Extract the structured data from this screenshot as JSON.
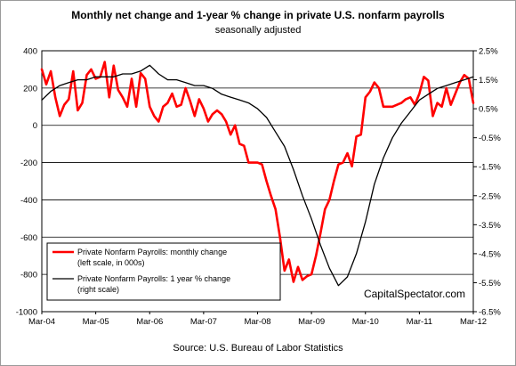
{
  "chart_data": {
    "type": "line",
    "title": "Monthly net change and 1-year %  change in private U.S. nonfarm payrolls",
    "subtitle": "seasonally adjusted",
    "source": "Source: U.S. Bureau of Labor Statistics",
    "watermark": "CapitalSpectator.com",
    "x_ticks": [
      "Mar-04",
      "Mar-05",
      "Mar-06",
      "Mar-07",
      "Mar-08",
      "Mar-09",
      "Mar-10",
      "Mar-11",
      "Mar-12"
    ],
    "y_left": {
      "ylim": [
        -1000,
        400
      ],
      "ticks": [
        "400",
        "200",
        "0",
        "-200",
        "-400",
        "-600",
        "-800",
        "-1000"
      ]
    },
    "y_right": {
      "ylim": [
        -6.5,
        2.5
      ],
      "ticks": [
        "2.5%",
        "1.5%",
        "0.5%",
        "-0.5%",
        "-1.5%",
        "-2.5%",
        "-3.5%",
        "-4.5%",
        "-5.5%",
        "-6.5%"
      ]
    },
    "grid": true,
    "legend_position": "bottom-left",
    "series": [
      {
        "name": "Private Nonfarm Payrolls: monthly change",
        "name_line2": "(left scale, in 000s)",
        "axis": "left",
        "color": "#ff0000",
        "x": [
          2004.167,
          2004.25,
          2004.333,
          2004.417,
          2004.5,
          2004.583,
          2004.667,
          2004.75,
          2004.833,
          2004.917,
          2005,
          2005.083,
          2005.167,
          2005.25,
          2005.333,
          2005.417,
          2005.5,
          2005.583,
          2005.667,
          2005.75,
          2005.833,
          2005.917,
          2006,
          2006.083,
          2006.167,
          2006.25,
          2006.333,
          2006.417,
          2006.5,
          2006.583,
          2006.667,
          2006.75,
          2006.833,
          2006.917,
          2007,
          2007.083,
          2007.167,
          2007.25,
          2007.333,
          2007.417,
          2007.5,
          2007.583,
          2007.667,
          2007.75,
          2007.833,
          2007.917,
          2008,
          2008.083,
          2008.167,
          2008.25,
          2008.333,
          2008.417,
          2008.5,
          2008.583,
          2008.667,
          2008.75,
          2008.833,
          2008.917,
          2009,
          2009.083,
          2009.167,
          2009.25,
          2009.333,
          2009.417,
          2009.5,
          2009.583,
          2009.667,
          2009.75,
          2009.833,
          2009.917,
          2010,
          2010.083,
          2010.167,
          2010.25,
          2010.333,
          2010.417,
          2010.5,
          2010.583,
          2010.667,
          2010.75,
          2010.833,
          2010.917,
          2011,
          2011.083,
          2011.167,
          2011.25,
          2011.333,
          2011.417,
          2011.5,
          2011.583,
          2011.667,
          2011.75,
          2011.833,
          2011.917,
          2012,
          2012.083,
          2012.167
        ],
        "values": [
          300,
          220,
          290,
          150,
          50,
          110,
          140,
          290,
          80,
          120,
          270,
          300,
          250,
          260,
          340,
          150,
          320,
          190,
          150,
          100,
          250,
          100,
          280,
          250,
          100,
          50,
          20,
          100,
          120,
          170,
          100,
          110,
          200,
          130,
          50,
          140,
          90,
          20,
          60,
          80,
          60,
          20,
          -50,
          0,
          -100,
          -110,
          -200,
          -200,
          -200,
          -210,
          -300,
          -380,
          -450,
          -600,
          -780,
          -720,
          -840,
          -760,
          -830,
          -810,
          -800,
          -700,
          -580,
          -450,
          -400,
          -300,
          -210,
          -200,
          -150,
          -220,
          -60,
          -50,
          150,
          180,
          230,
          200,
          100,
          100,
          100,
          110,
          120,
          140,
          150,
          110,
          170,
          260,
          240,
          50,
          120,
          100,
          200,
          110,
          170,
          230,
          270,
          250,
          120
        ]
      },
      {
        "name": "Private Nonfarm Payrolls:  1 year % change",
        "name_line2": "(right scale)",
        "axis": "right",
        "color": "#000000",
        "x": [
          2004.167,
          2004.333,
          2004.5,
          2004.667,
          2004.833,
          2005,
          2005.167,
          2005.333,
          2005.5,
          2005.667,
          2005.833,
          2006,
          2006.167,
          2006.333,
          2006.5,
          2006.667,
          2006.833,
          2007,
          2007.167,
          2007.333,
          2007.5,
          2007.667,
          2007.833,
          2008,
          2008.167,
          2008.333,
          2008.5,
          2008.667,
          2008.833,
          2009,
          2009.167,
          2009.333,
          2009.5,
          2009.667,
          2009.833,
          2010,
          2010.167,
          2010.333,
          2010.5,
          2010.667,
          2010.833,
          2011,
          2011.167,
          2011.333,
          2011.5,
          2011.667,
          2011.833,
          2012,
          2012.167
        ],
        "values": [
          0.8,
          1.1,
          1.3,
          1.4,
          1.5,
          1.5,
          1.6,
          1.6,
          1.6,
          1.7,
          1.7,
          1.8,
          2.0,
          1.7,
          1.5,
          1.5,
          1.4,
          1.3,
          1.3,
          1.2,
          1.0,
          0.9,
          0.8,
          0.7,
          0.5,
          0.2,
          -0.3,
          -0.8,
          -1.6,
          -2.5,
          -3.3,
          -4.2,
          -5.0,
          -5.6,
          -5.3,
          -4.5,
          -3.4,
          -2.1,
          -1.2,
          -0.5,
          0.0,
          0.4,
          0.8,
          1.0,
          1.2,
          1.3,
          1.4,
          1.5,
          1.6
        ]
      }
    ]
  }
}
